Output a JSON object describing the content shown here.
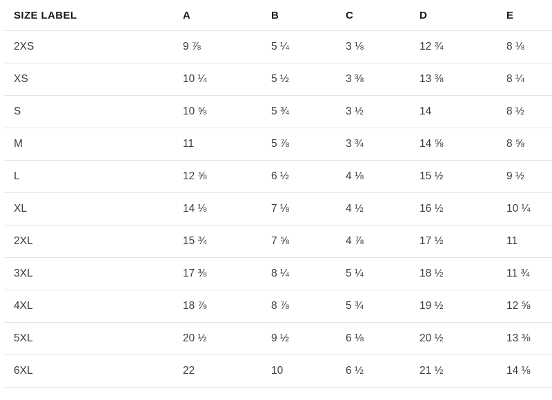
{
  "chart_data": {
    "type": "table",
    "title": "",
    "columns": [
      "SIZE LABEL",
      "A",
      "B",
      "C",
      "D",
      "E"
    ],
    "rows": [
      {
        "label": "2XS",
        "values": [
          "9 ⅞",
          "5 ¼",
          "3 ⅛",
          "12 ¾",
          "8 ⅛"
        ]
      },
      {
        "label": "XS",
        "values": [
          "10 ¼",
          "5 ½",
          "3 ⅜",
          "13 ⅜",
          "8 ¼"
        ]
      },
      {
        "label": "S",
        "values": [
          "10 ⅝",
          "5 ¾",
          "3 ½",
          "14",
          "8 ½"
        ]
      },
      {
        "label": "M",
        "values": [
          "11",
          "5 ⅞",
          "3 ¾",
          "14 ⅝",
          "8 ⅝"
        ]
      },
      {
        "label": "L",
        "values": [
          "12 ⅝",
          "6 ½",
          "4 ⅛",
          "15 ½",
          "9 ½"
        ]
      },
      {
        "label": "XL",
        "values": [
          "14 ⅛",
          "7 ⅛",
          "4 ½",
          "16 ½",
          "10 ¼"
        ]
      },
      {
        "label": "2XL",
        "values": [
          "15 ¾",
          "7 ⅝",
          "4 ⅞",
          "17 ½",
          "11"
        ]
      },
      {
        "label": "3XL",
        "values": [
          "17 ⅜",
          "8 ¼",
          "5 ¼",
          "18 ½",
          "11 ¾"
        ]
      },
      {
        "label": "4XL",
        "values": [
          "18 ⅞",
          "8 ⅞",
          "5 ¾",
          "19 ½",
          "12 ⅝"
        ]
      },
      {
        "label": "5XL",
        "values": [
          "20 ½",
          "9 ½",
          "6 ⅛",
          "20 ½",
          "13 ⅜"
        ]
      },
      {
        "label": "6XL",
        "values": [
          "22",
          "10",
          "6 ½",
          "21 ½",
          "14 ⅛"
        ]
      }
    ],
    "layout": {
      "grid": "horizontal row dividers only",
      "header_text_color": "#17191d",
      "body_text_color": "#3c3d41",
      "divider_color": "#e4e4e6",
      "background_color": "#ffffff"
    }
  }
}
